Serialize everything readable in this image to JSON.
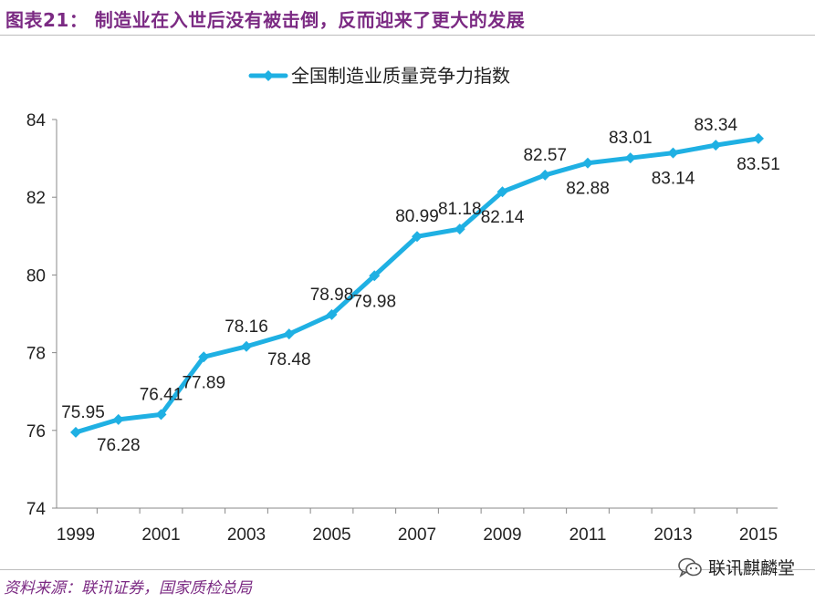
{
  "figure": {
    "title": "图表21：   制造业在入世后没有被击倒，反而迎来了更大的发展",
    "source": "资料来源：联讯证券，国家质检总局",
    "watermark": "联讯麒麟堂"
  },
  "colors": {
    "title": "#7b2a83",
    "series": "#1fb0e3",
    "axis": "#888888",
    "text": "#222222"
  },
  "chart_data": {
    "type": "line",
    "title": "",
    "xlabel": "",
    "ylabel": "",
    "ylim": [
      74,
      84
    ],
    "yticks": [
      74,
      76,
      78,
      80,
      82,
      84
    ],
    "xticks": [
      "1999",
      "2001",
      "2003",
      "2005",
      "2007",
      "2009",
      "2011",
      "2013",
      "2015"
    ],
    "legend_position": "top-center",
    "grid": false,
    "series": [
      {
        "name": "全国制造业质量竞争力指数",
        "x": [
          1999,
          2000,
          2001,
          2002,
          2003,
          2004,
          2005,
          2006,
          2007,
          2008,
          2009,
          2010,
          2011,
          2012,
          2013,
          2014,
          2015
        ],
        "values": [
          75.95,
          76.28,
          76.41,
          77.89,
          78.16,
          78.48,
          78.98,
          79.98,
          80.99,
          81.18,
          82.14,
          82.57,
          82.88,
          83.01,
          83.14,
          83.34,
          83.51
        ],
        "labels": [
          "75.95",
          "76.28",
          "76.41",
          "77.89",
          "78.16",
          "78.48",
          "78.98",
          "79.98",
          "80.99",
          "81.18",
          "82.14",
          "82.57",
          "82.88",
          "83.01",
          "83.14",
          "83.34",
          "83.51"
        ],
        "label_side": [
          "above",
          "below",
          "above",
          "below",
          "above",
          "below",
          "above",
          "below",
          "above",
          "above",
          "below",
          "above",
          "below",
          "above",
          "below",
          "above",
          "below"
        ]
      }
    ]
  }
}
